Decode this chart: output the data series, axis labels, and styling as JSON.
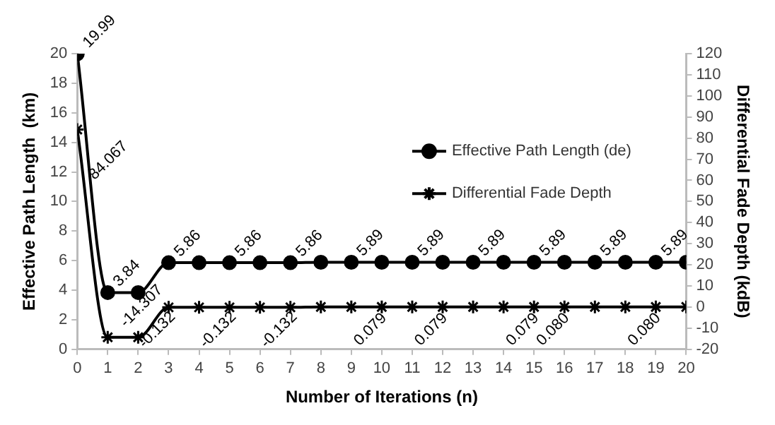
{
  "chart_data": {
    "type": "line",
    "xlabel": "Number of Iterations (n)",
    "ylabel": "Effective Path Length  (km)",
    "y2label": "Differential Fade Depth (kdB)",
    "x": [
      0,
      1,
      2,
      3,
      4,
      5,
      6,
      7,
      8,
      9,
      10,
      11,
      12,
      13,
      14,
      15,
      16,
      17,
      18,
      19,
      20
    ],
    "xlim": [
      0,
      20
    ],
    "xticks": [
      0,
      1,
      2,
      3,
      4,
      5,
      6,
      7,
      8,
      9,
      10,
      11,
      12,
      13,
      14,
      15,
      16,
      17,
      18,
      19,
      20
    ],
    "ylim": [
      0,
      20
    ],
    "yticks": [
      0,
      2,
      4,
      6,
      8,
      10,
      12,
      14,
      16,
      18,
      20
    ],
    "y2lim": [
      -20,
      120
    ],
    "y2ticks": [
      -20,
      -10,
      0,
      10,
      20,
      30,
      40,
      50,
      60,
      70,
      80,
      90,
      100,
      110,
      120
    ],
    "grid": false,
    "legend": "right",
    "series": [
      {
        "name": "Effective Path Length (de)",
        "color": "#000000",
        "marker": "circle",
        "values": [
          19.99,
          3.84,
          3.84,
          5.86,
          5.86,
          5.86,
          5.86,
          5.86,
          5.89,
          5.89,
          5.89,
          5.89,
          5.89,
          5.89,
          5.89,
          5.89,
          5.89,
          5.89,
          5.89,
          5.89,
          5.89
        ],
        "value_labels": [
          "19.99",
          "3.84",
          null,
          "5.86",
          null,
          "5.86",
          null,
          "5.86",
          null,
          "5.89",
          null,
          "5.89",
          null,
          "5.89",
          null,
          "5.89",
          null,
          "5.89",
          null,
          "5.89",
          null
        ]
      },
      {
        "name": "Differential Fade Depth",
        "color": "#000000",
        "marker": "cross",
        "axis": "y2",
        "values": [
          84.067,
          -14.307,
          -14.307,
          -0.132,
          -0.132,
          -0.132,
          -0.132,
          -0.132,
          0.079,
          0.079,
          0.079,
          0.079,
          0.079,
          0.079,
          0.079,
          0.079,
          0.08,
          0.08,
          0.08,
          0.08,
          0.08
        ],
        "value_labels": [
          "84.067",
          "-14.307",
          null,
          "-0.132",
          null,
          "-0.132",
          null,
          "-0.132",
          null,
          null,
          "0.079",
          null,
          "0.079",
          null,
          null,
          "0.079",
          "0.080",
          null,
          null,
          "0.080",
          null
        ]
      }
    ]
  }
}
